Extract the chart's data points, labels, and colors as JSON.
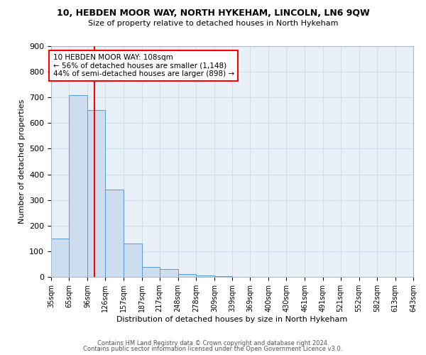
{
  "title1": "10, HEBDEN MOOR WAY, NORTH HYKEHAM, LINCOLN, LN6 9QW",
  "title2": "Size of property relative to detached houses in North Hykeham",
  "xlabel": "Distribution of detached houses by size in North Hykeham",
  "ylabel": "Number of detached properties",
  "bin_edges": [
    35,
    65,
    96,
    126,
    157,
    187,
    217,
    248,
    278,
    309,
    339,
    369,
    400,
    430,
    461,
    491,
    521,
    552,
    582,
    613,
    643
  ],
  "bin_labels": [
    "35sqm",
    "65sqm",
    "96sqm",
    "126sqm",
    "157sqm",
    "187sqm",
    "217sqm",
    "248sqm",
    "278sqm",
    "309sqm",
    "339sqm",
    "369sqm",
    "400sqm",
    "430sqm",
    "461sqm",
    "491sqm",
    "521sqm",
    "552sqm",
    "582sqm",
    "613sqm",
    "643sqm"
  ],
  "counts": [
    150,
    710,
    650,
    340,
    130,
    40,
    30,
    10,
    5,
    2,
    1,
    0,
    0,
    0,
    0,
    0,
    0,
    0,
    0,
    0
  ],
  "bar_facecolor": "#ccddef",
  "bar_edgecolor": "#5b9bd5",
  "grid_color": "#d0e0ee",
  "bg_color": "#e8f0f8",
  "property_line_x": 108,
  "property_line_color": "red",
  "annotation_line1": "10 HEBDEN MOOR WAY: 108sqm",
  "annotation_line2": "← 56% of detached houses are smaller (1,148)",
  "annotation_line3": "44% of semi-detached houses are larger (898) →",
  "annotation_box_color": "white",
  "annotation_box_edgecolor": "red",
  "ylim": [
    0,
    900
  ],
  "yticks": [
    0,
    100,
    200,
    300,
    400,
    500,
    600,
    700,
    800,
    900
  ],
  "footer1": "Contains HM Land Registry data © Crown copyright and database right 2024.",
  "footer2": "Contains public sector information licensed under the Open Government Licence v3.0."
}
